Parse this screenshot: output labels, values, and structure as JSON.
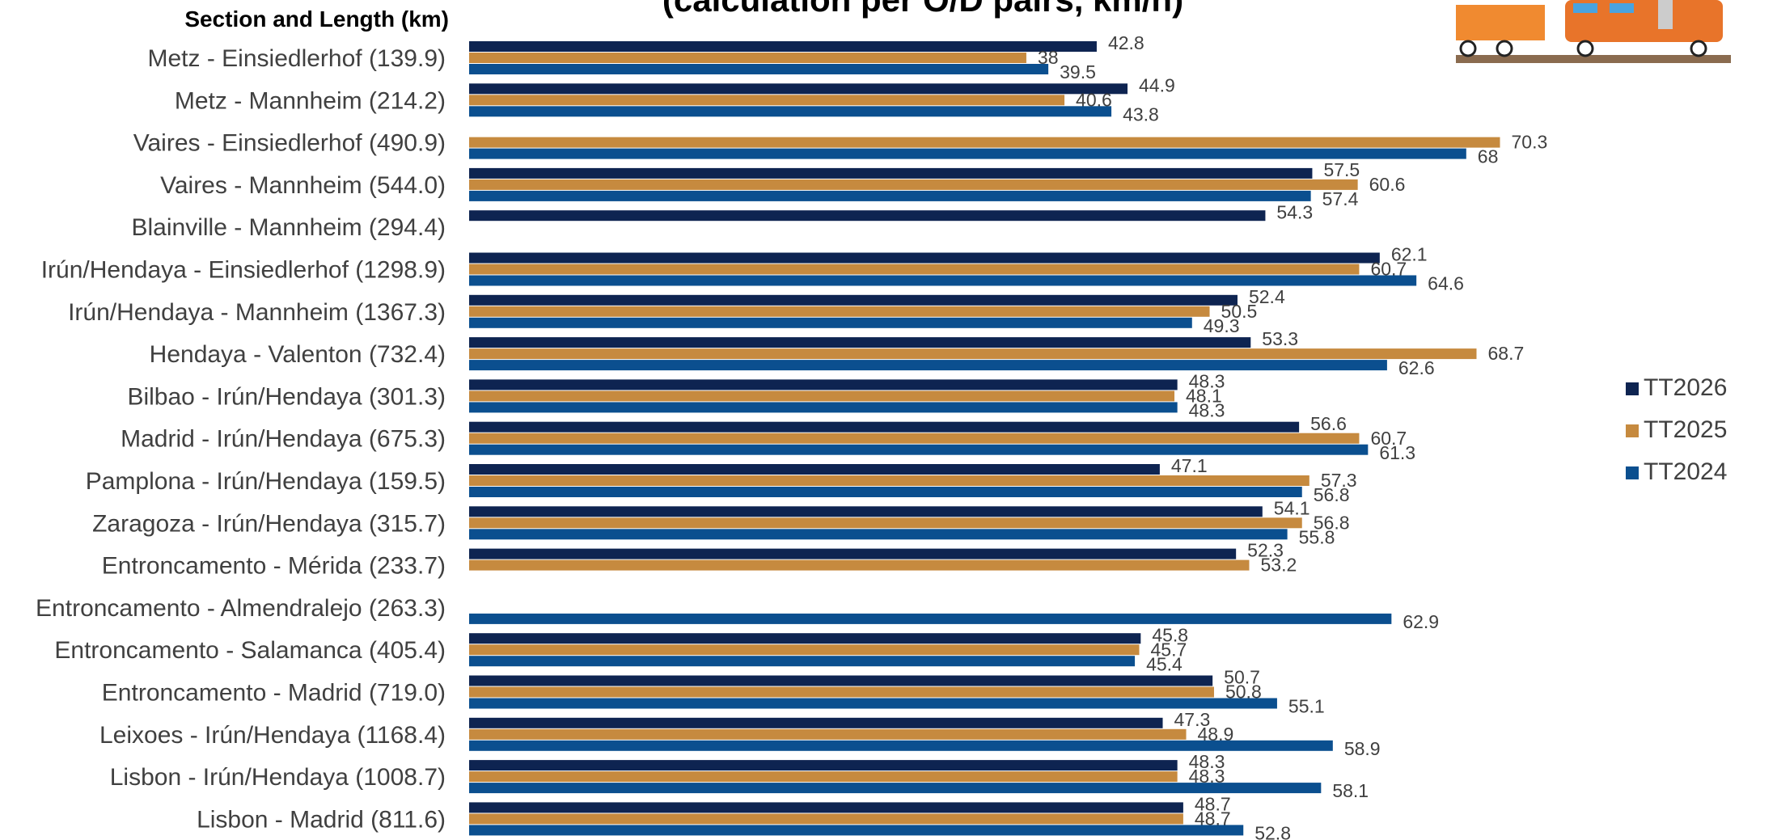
{
  "chart_data": {
    "type": "hbar",
    "title": "(calculation per O/D pairs, km/h)",
    "y_label": "Section and Length (km)",
    "categories": [
      "Metz - Einsiedlerhof (139.9)",
      "Metz - Mannheim (214.2)",
      "Vaires - Einsiedlerhof (490.9)",
      "Vaires - Mannheim (544.0)",
      "Blainville - Mannheim (294.4)",
      "Irún/Hendaya - Einsiedlerhof (1298.9)",
      "Irún/Hendaya - Mannheim (1367.3)",
      "Hendaya - Valenton (732.4)",
      "Bilbao - Irún/Hendaya (301.3)",
      "Madrid - Irún/Hendaya (675.3)",
      "Pamplona - Irún/Hendaya (159.5)",
      "Zaragoza - Irún/Hendaya (315.7)",
      "Entroncamento - Mérida (233.7)",
      "Entroncamento - Almendralejo (263.3)",
      "Entroncamento - Salamanca (405.4)",
      "Entroncamento - Madrid (719.0)",
      "Leixoes - Irún/Hendaya (1168.4)",
      "Lisbon - Irún/Hendaya (1008.7)",
      "Lisbon - Madrid (811.6)"
    ],
    "series": [
      {
        "name": "TT2026",
        "color": "#0e2451",
        "values": [
          42.8,
          44.9,
          null,
          57.5,
          54.3,
          62.1,
          52.4,
          53.3,
          48.3,
          56.6,
          47.1,
          54.1,
          52.3,
          null,
          45.8,
          50.7,
          47.3,
          48.3,
          48.7
        ]
      },
      {
        "name": "TT2025",
        "color": "#c68a3f",
        "values": [
          38,
          40.6,
          70.3,
          60.6,
          null,
          60.7,
          50.5,
          68.7,
          48.1,
          60.7,
          57.3,
          56.8,
          53.2,
          null,
          45.7,
          50.8,
          48.9,
          48.3,
          48.7
        ]
      },
      {
        "name": "TT2024",
        "color": "#0b4f8f",
        "values": [
          39.5,
          43.8,
          68,
          57.4,
          null,
          64.6,
          49.3,
          62.6,
          48.3,
          61.3,
          56.8,
          55.8,
          null,
          62.9,
          45.4,
          55.1,
          58.9,
          58.1,
          52.8
        ]
      }
    ],
    "xlim": [
      0,
      85
    ],
    "legend": "right"
  }
}
